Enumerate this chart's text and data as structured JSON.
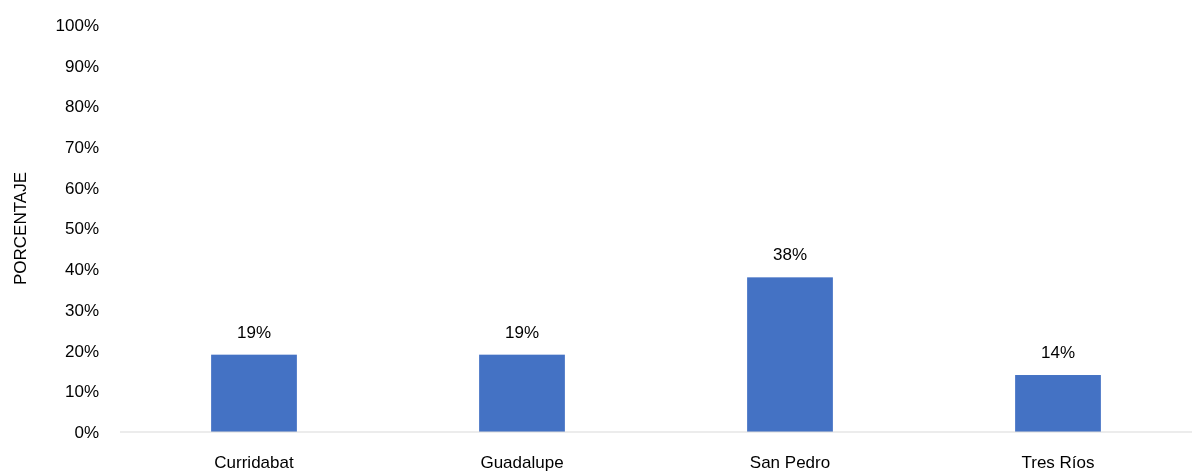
{
  "chart_data": {
    "type": "bar",
    "ylabel": "PORCENTAJE",
    "categories": [
      "Curridabat",
      "Guadalupe",
      "San Pedro",
      "Tres Ríos"
    ],
    "values": [
      19,
      19,
      38,
      14
    ],
    "value_labels": [
      "19%",
      "19%",
      "38%",
      "14%"
    ],
    "color": "#4472c4",
    "ylim": [
      0,
      100
    ],
    "yticks": [
      {
        "value": 0,
        "label": "0%"
      },
      {
        "value": 10,
        "label": "10%"
      },
      {
        "value": 20,
        "label": "20%"
      },
      {
        "value": 30,
        "label": "30%"
      },
      {
        "value": 40,
        "label": "40%"
      },
      {
        "value": 50,
        "label": "50%"
      },
      {
        "value": 60,
        "label": "60%"
      },
      {
        "value": 70,
        "label": "70%"
      },
      {
        "value": 80,
        "label": "80%"
      },
      {
        "value": 90,
        "label": "90%"
      },
      {
        "value": 100,
        "label": "100%"
      }
    ]
  }
}
